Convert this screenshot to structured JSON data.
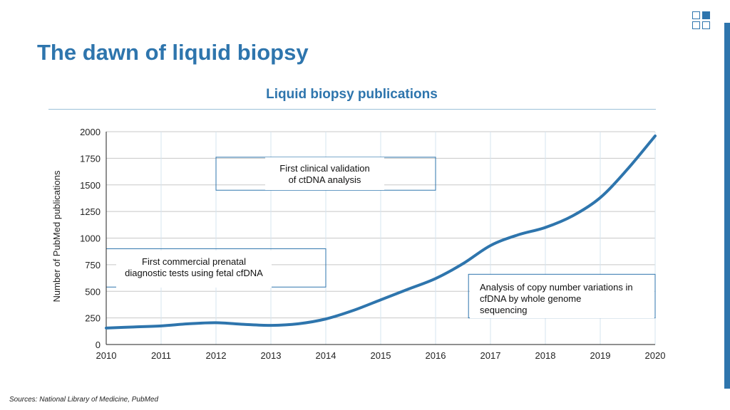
{
  "slide": {
    "title": "The dawn of liquid biopsy",
    "source": "Sources: National Library of Medicine, PubMed",
    "accent_color": "#2e75ad",
    "logo_icon": "grid-squares-logo"
  },
  "chart_data": {
    "type": "line",
    "title": "Liquid biopsy publications",
    "xlabel": "",
    "ylabel": "Number of PubMed publications",
    "x_ticks": [
      "2010",
      "2011",
      "2012",
      "2013",
      "2014",
      "2015",
      "2016",
      "2017",
      "2018",
      "2019",
      "2020"
    ],
    "y_ticks": [
      "0",
      "250",
      "500",
      "750",
      "1000",
      "1250",
      "1500",
      "1750",
      "2000"
    ],
    "xlim": [
      2010,
      2020
    ],
    "ylim": [
      0,
      2000
    ],
    "grid": true,
    "line_color": "#2e75ad",
    "series": [
      {
        "x": [
          2010,
          2010.5,
          2011,
          2011.5,
          2012,
          2012.5,
          2013,
          2013.5,
          2014,
          2014.5,
          2015,
          2015.5,
          2016,
          2016.5,
          2017,
          2017.5,
          2018,
          2018.5,
          2019,
          2019.5,
          2020
        ],
        "values": [
          155,
          165,
          175,
          195,
          205,
          190,
          180,
          195,
          240,
          320,
          420,
          520,
          620,
          760,
          930,
          1030,
          1100,
          1210,
          1380,
          1650,
          1960
        ]
      }
    ],
    "annotations": [
      {
        "id": "ann1",
        "lines": [
          "First commercial prenatal",
          "diagnostic tests using fetal cfDNA"
        ],
        "x_range": [
          2010,
          2014
        ],
        "y_range": [
          540,
          900
        ]
      },
      {
        "id": "ann2",
        "lines": [
          "First clinical validation",
          "of ctDNA analysis"
        ],
        "x_range": [
          2012,
          2016
        ],
        "y_range": [
          1450,
          1760
        ]
      },
      {
        "id": "ann3",
        "lines": [
          "Analysis of copy number variations in",
          "cfDNA by whole genome",
          "sequencing"
        ],
        "x_range": [
          2016.6,
          2020
        ],
        "y_range": [
          250,
          660
        ]
      }
    ]
  }
}
